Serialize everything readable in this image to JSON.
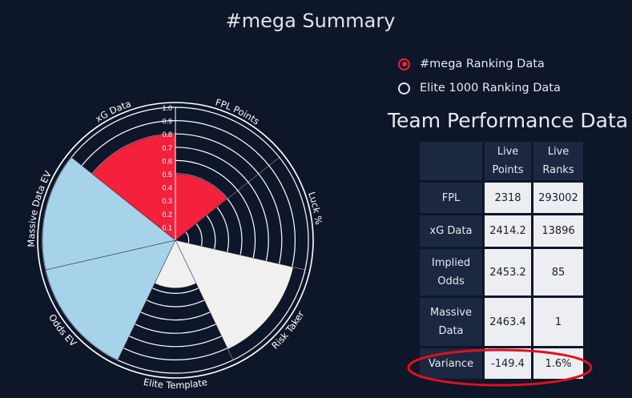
{
  "page": {
    "title": "#mega Summary"
  },
  "radio_options": [
    {
      "label": "#mega Ranking Data",
      "selected": true
    },
    {
      "label": "Elite 1000 Ranking Data",
      "selected": false
    }
  ],
  "performance": {
    "title": "Team Performance Data",
    "headers": [
      "",
      "Live Points",
      "Live Ranks"
    ],
    "rows": [
      {
        "label": "FPL",
        "points": "2318",
        "rank": "293002"
      },
      {
        "label": "xG Data",
        "points": "2414.2",
        "rank": "13896"
      },
      {
        "label": "Implied Odds",
        "points": "2453.2",
        "rank": "85"
      },
      {
        "label": "Massive Data",
        "points": "2463.4",
        "rank": "1"
      },
      {
        "label": "Variance",
        "points": "-149.4",
        "rank": "1.6%"
      }
    ],
    "highlighted_row": "Variance"
  },
  "colors": {
    "background": "#0e162a",
    "accent_red": "#f3213b",
    "light_blue": "#a7d3ea",
    "light_gray": "#f0f0f0",
    "annotation_red": "#e0101e"
  },
  "chart_data": {
    "type": "polar-area",
    "title": "#mega Summary",
    "categories": [
      "FPL Points",
      "Luck %",
      "Risk Taker",
      "Elite Template",
      "Odds EV",
      "Massive Data EV",
      "xG Data"
    ],
    "values": [
      0.5,
      0.0,
      0.91,
      0.36,
      1.0,
      1.0,
      0.8
    ],
    "colors": [
      "#f3213b",
      "#f3213b",
      "#f0f0f0",
      "#f0f0f0",
      "#a7d3ea",
      "#a7d3ea",
      "#f3213b"
    ],
    "r_ticks": [
      "0.1",
      "0.2",
      "0.3",
      "0.4",
      "0.5",
      "0.6",
      "0.7",
      "0.8",
      "0.9",
      "1.0"
    ],
    "rlim": [
      0,
      1
    ]
  }
}
